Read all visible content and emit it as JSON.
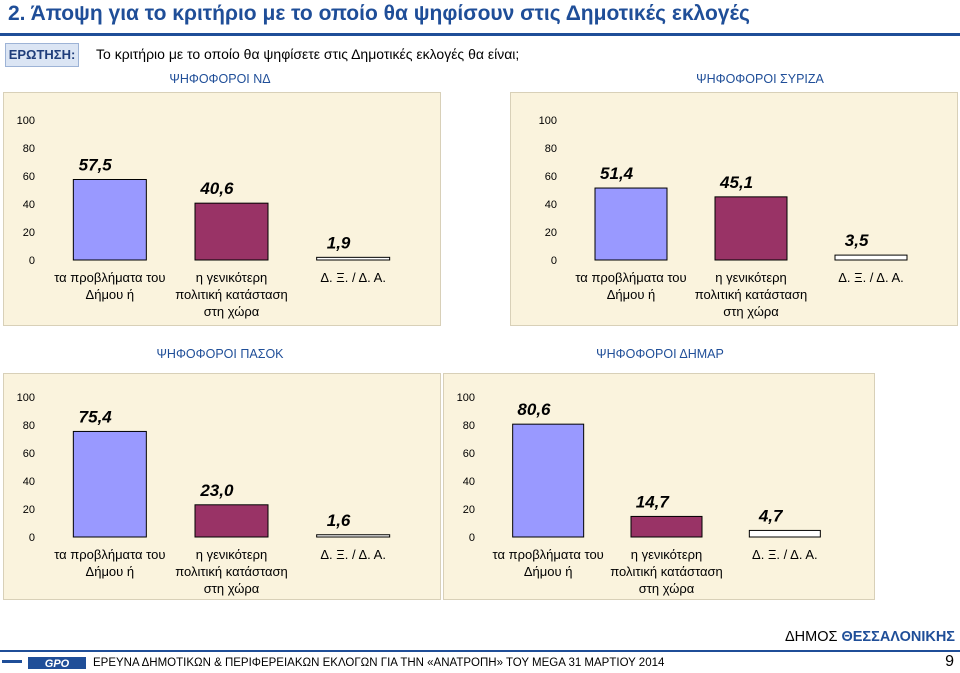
{
  "page": {
    "title": "2.   Άποψη για το κριτήριο με το οποίο θα ψηφίσουν στις Δημοτικές εκλογές",
    "question_label": "ΕΡΩΤΗΣΗ:",
    "question_text": "Το κριτήριο με το οποίο θα ψηφίσετε στις Δημοτικές εκλογές θα είναι;"
  },
  "colors": {
    "title": "#1f4e98",
    "bar_1": "#9999ff",
    "bar_2": "#993366",
    "bar_3": "#ffffff",
    "panel_background": "#faf3dd"
  },
  "chart_data": [
    {
      "type": "bar",
      "title": "ΨΗΦΟΦΟΡΟΙ ΝΔ",
      "categories": [
        "τα προβλήματα του Δήμου ή",
        "η γενικότερη πολιτική κατάσταση στη χώρα",
        "Δ. Ξ. / Δ. Α."
      ],
      "values": [
        57.5,
        40.6,
        1.9
      ],
      "value_labels": [
        "57,5",
        "40,6",
        "1,9"
      ],
      "yticks": [
        "0",
        "20",
        "40",
        "60",
        "80",
        "100"
      ],
      "ylim": [
        0,
        100
      ],
      "grid": false
    },
    {
      "type": "bar",
      "title": "ΨΗΦΟΦΟΡΟΙ ΣΥΡΙΖΑ",
      "categories": [
        "τα προβλήματα του Δήμου ή",
        "η γενικότερη πολιτική κατάσταση στη χώρα",
        "Δ. Ξ. / Δ. Α."
      ],
      "values": [
        51.4,
        45.1,
        3.5
      ],
      "value_labels": [
        "51,4",
        "45,1",
        "3,5"
      ],
      "yticks": [
        "0",
        "20",
        "40",
        "60",
        "80",
        "100"
      ],
      "ylim": [
        0,
        100
      ],
      "grid": false
    },
    {
      "type": "bar",
      "title": "ΨΗΦΟΦΟΡΟΙ ΠΑΣΟΚ",
      "categories": [
        "τα προβλήματα του Δήμου ή",
        "η γενικότερη πολιτική κατάσταση στη χώρα",
        "Δ. Ξ. / Δ. Α."
      ],
      "values": [
        75.4,
        23.0,
        1.6
      ],
      "value_labels": [
        "75,4",
        "23,0",
        "1,6"
      ],
      "yticks": [
        "0",
        "20",
        "40",
        "60",
        "80",
        "100"
      ],
      "ylim": [
        0,
        100
      ],
      "grid": false
    },
    {
      "type": "bar",
      "title": "ΨΗΦΟΦΟΡΟΙ ΔΗΜΑΡ",
      "categories": [
        "τα προβλήματα του Δήμου ή",
        "η γενικότερη πολιτική κατάσταση στη χώρα",
        "Δ. Ξ. / Δ. Α."
      ],
      "values": [
        80.6,
        14.7,
        4.7
      ],
      "value_labels": [
        "80,6",
        "14,7",
        "4,7"
      ],
      "yticks": [
        "0",
        "20",
        "40",
        "60",
        "80",
        "100"
      ],
      "ylim": [
        0,
        100
      ],
      "grid": false
    }
  ],
  "footer": {
    "org_prefix": "ΔΗΜΟΣ",
    "org_name": "ΘΕΣΣΑΛΟΝΙΚΗΣ",
    "logo_text": "GPO",
    "survey_text": "ΕΡΕΥΝΑ ΔΗΜΟΤΙΚΩΝ & ΠΕΡΙΦΕΡΕΙΑΚΩΝ ΕΚΛΟΓΩΝ ΓΙΑ ΤΗΝ «ΑΝΑΤΡΟΠΗ» ΤΟΥ MEGA  31 ΜΑΡΤΙΟΥ 2014",
    "page_number": "9"
  }
}
